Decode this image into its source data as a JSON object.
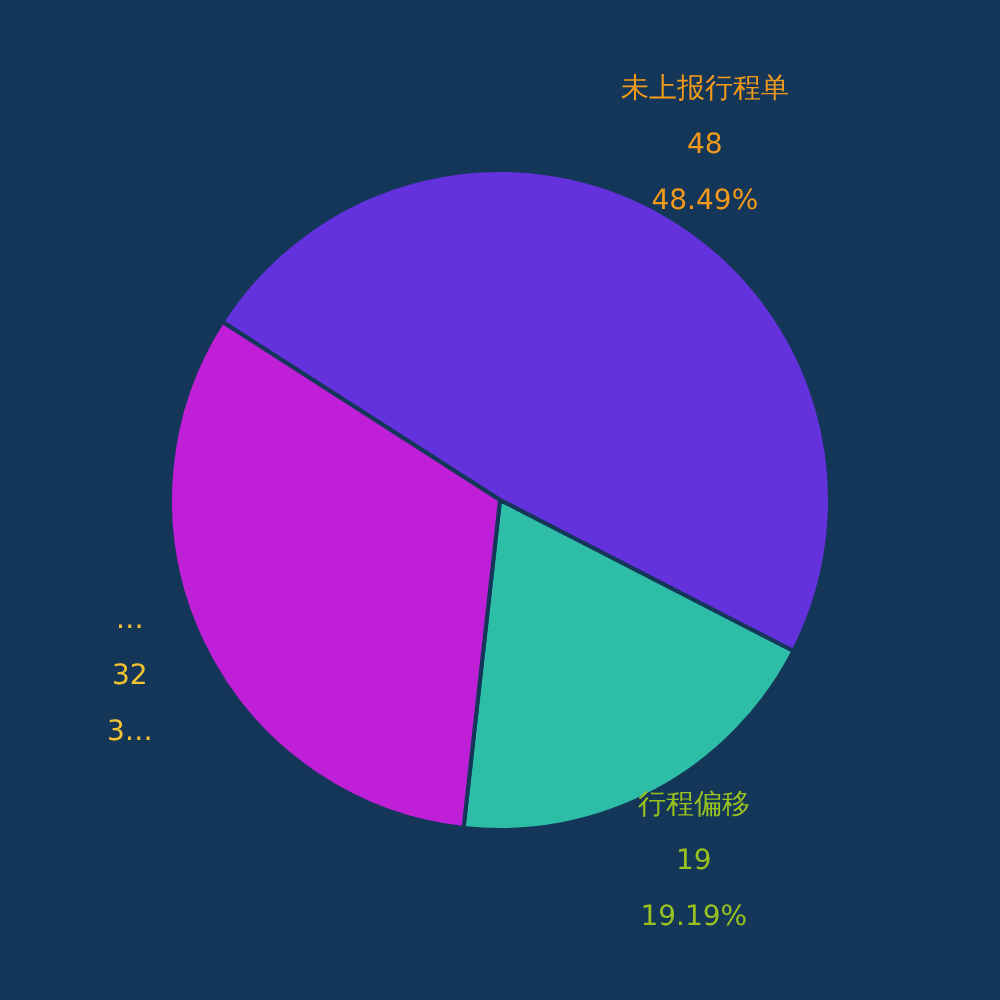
{
  "chart_data": {
    "type": "pie",
    "categories": [
      "未上报行程单",
      "行程偏移",
      "…"
    ],
    "values": [
      48,
      19,
      32
    ],
    "colors": [
      "#6432dc",
      "#2ebea8",
      "#c01fd8"
    ],
    "data_labels": true,
    "annotations": [
      "48.49%",
      "19.19%",
      "3…"
    ]
  }
}
